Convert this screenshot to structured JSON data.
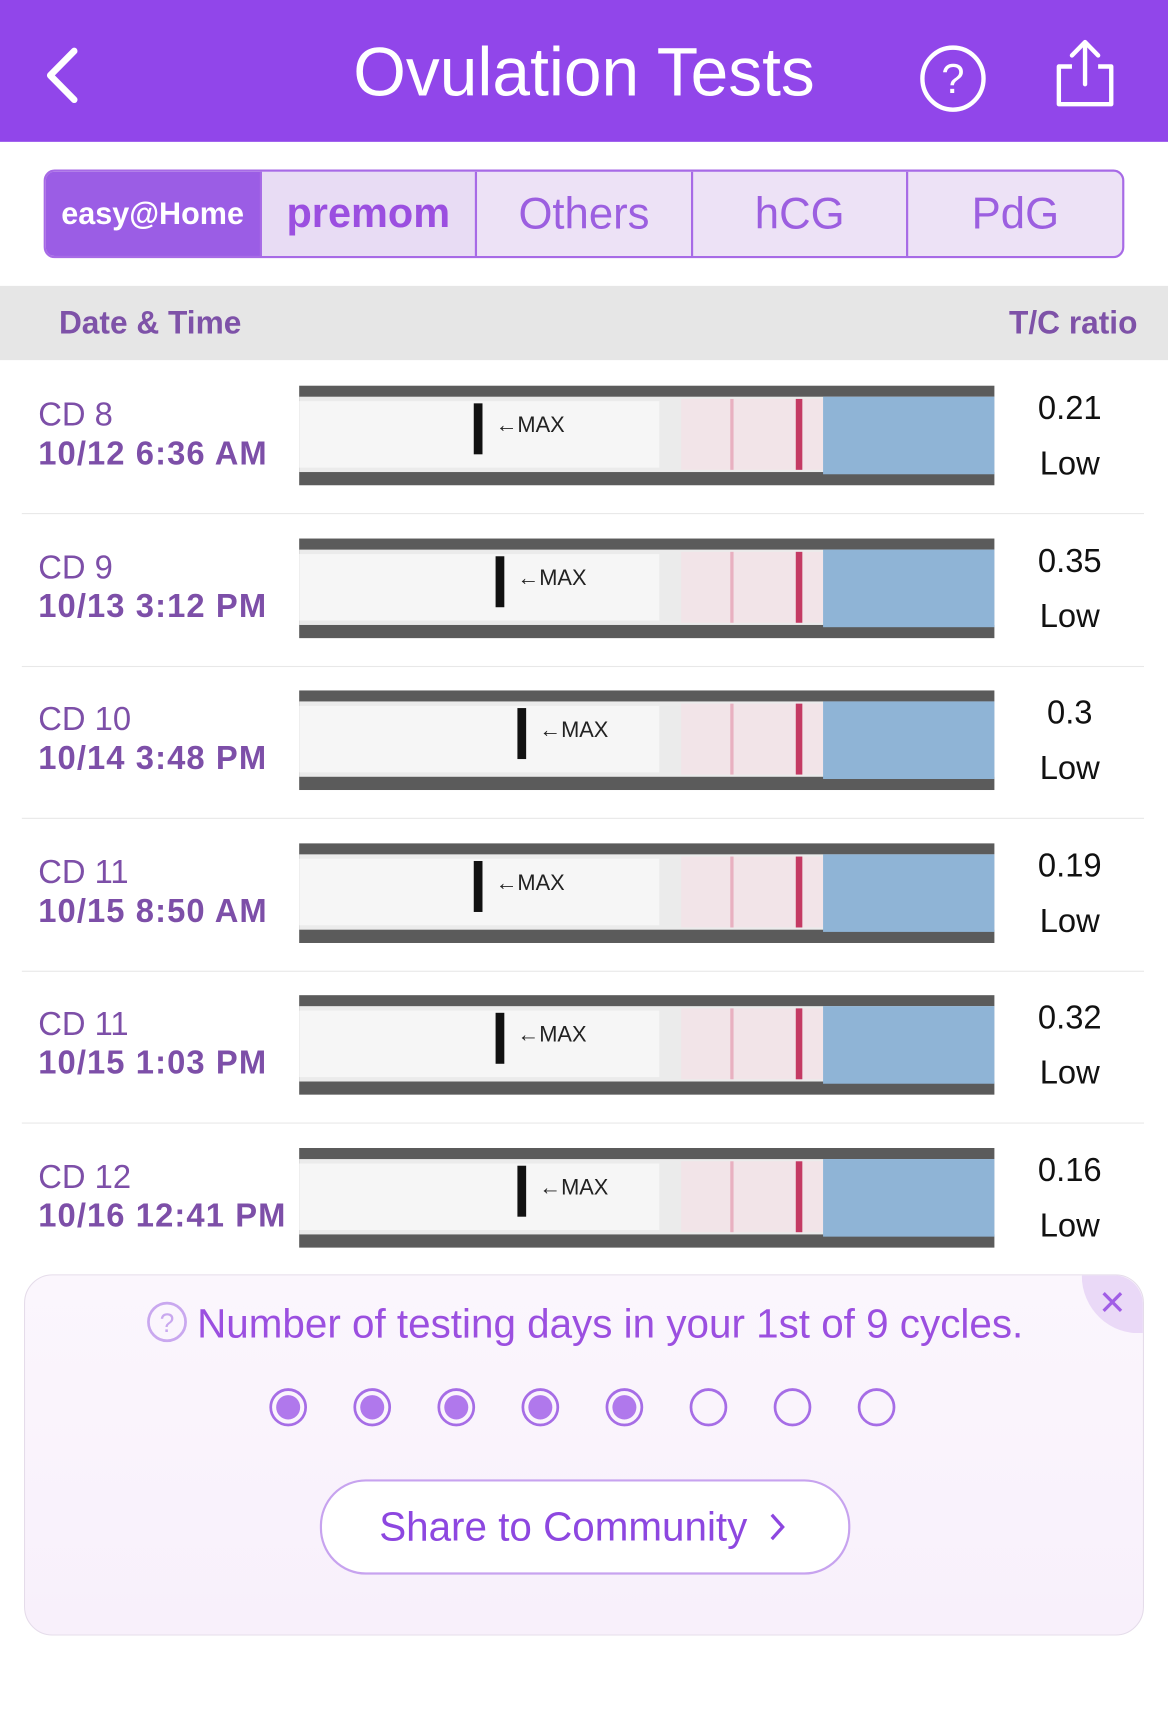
{
  "header": {
    "title": "Ovulation Tests"
  },
  "tabs": [
    "easy@Home",
    "premom",
    "Others",
    "hCG",
    "PdG"
  ],
  "table": {
    "columns": [
      "Date & Time",
      "T/C ratio"
    ],
    "rows": [
      {
        "cycle_day": "CD 8",
        "date": "10/12 6:36 AM",
        "ratio": "0.21",
        "level": "Low"
      },
      {
        "cycle_day": "CD 9",
        "date": "10/13 3:12 PM",
        "ratio": "0.35",
        "level": "Low"
      },
      {
        "cycle_day": "CD 10",
        "date": "10/14 3:48 PM",
        "ratio": "0.3",
        "level": "Low"
      },
      {
        "cycle_day": "CD 11",
        "date": "10/15 8:50 AM",
        "ratio": "0.19",
        "level": "Low"
      },
      {
        "cycle_day": "CD 11",
        "date": "10/15 1:03 PM",
        "ratio": "0.32",
        "level": "Low"
      },
      {
        "cycle_day": "CD 12",
        "date": "10/16 12:41 PM",
        "ratio": "0.16",
        "level": "Low"
      }
    ]
  },
  "card": {
    "message": "Number of testing days in your 1st of 9 cycles.",
    "button": "Share to Community"
  }
}
